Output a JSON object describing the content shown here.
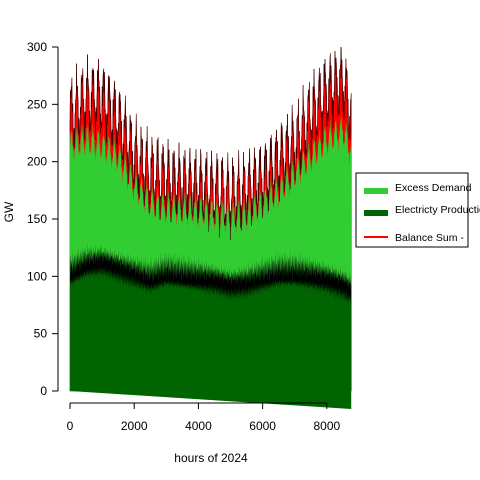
{
  "chart_data": {
    "type": "area",
    "xlabel": "hours of 2024",
    "ylabel": "GW",
    "xlim": [
      0,
      8784
    ],
    "ylim": [
      0,
      300
    ],
    "x_ticks": [
      0,
      2000,
      4000,
      6000,
      8000
    ],
    "y_ticks": [
      0,
      50,
      100,
      150,
      200,
      250,
      300
    ],
    "grid": false,
    "legend_position": "right",
    "series": [
      {
        "name": "Electricty Production",
        "type": "area",
        "color": "#006400",
        "x": [
          0,
          500,
          1000,
          1500,
          2000,
          2500,
          3000,
          3500,
          4000,
          4500,
          5000,
          5500,
          6000,
          6500,
          7000,
          7500,
          8000,
          8500,
          8760
        ],
        "values": [
          110,
          118,
          120,
          115,
          110,
          105,
          110,
          108,
          106,
          104,
          100,
          102,
          106,
          110,
          110,
          108,
          105,
          100,
          95
        ]
      },
      {
        "name": "Excess Demand",
        "type": "area",
        "color": "#32CD32",
        "x": [
          0,
          500,
          1000,
          1500,
          2000,
          2500,
          3000,
          3500,
          4000,
          4500,
          5000,
          5500,
          6000,
          6500,
          7000,
          7500,
          8000,
          8500,
          8760
        ],
        "values": [
          215,
          220,
          215,
          205,
          180,
          165,
          160,
          160,
          158,
          155,
          152,
          155,
          165,
          175,
          190,
          205,
          220,
          228,
          210
        ]
      },
      {
        "name": "Balance Sum -",
        "type": "line",
        "color": "#FF0000",
        "x": [
          0,
          500,
          1000,
          1500,
          2000,
          2500,
          3000,
          3500,
          4000,
          4500,
          5000,
          5500,
          6000,
          6500,
          7000,
          7500,
          8000,
          8500,
          8760
        ],
        "values": [
          240,
          255,
          255,
          235,
          205,
          190,
          185,
          180,
          178,
          175,
          170,
          175,
          185,
          200,
          215,
          240,
          260,
          270,
          240
        ]
      }
    ]
  }
}
